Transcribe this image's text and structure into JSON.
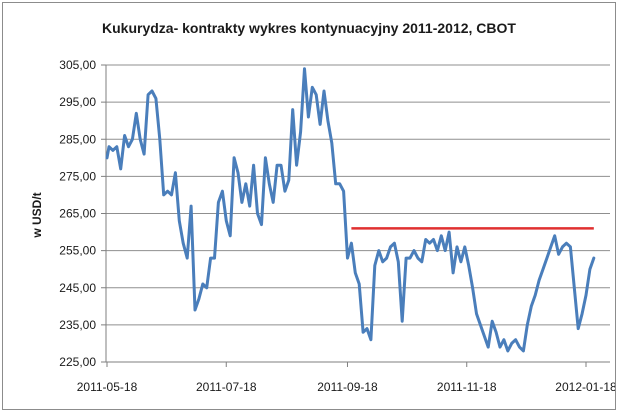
{
  "chart_data": {
    "type": "line",
    "title": "Kukurydza- kontrakty wykres kontynuacyjny 2011-2012,  CBOT",
    "xlabel": "",
    "ylabel": "w USD/t",
    "ylim": [
      225,
      305
    ],
    "y_ticks": [
      "305,00",
      "295,00",
      "285,00",
      "275,00",
      "265,00",
      "255,00",
      "245,00",
      "235,00",
      "225,00"
    ],
    "x_ticks": [
      {
        "date": "2011-05-18",
        "label": "2011-05-18"
      },
      {
        "date": "2011-07-18",
        "label": "2011-07-18"
      },
      {
        "date": "2011-09-18",
        "label": "2011-09-18"
      },
      {
        "date": "2011-11-18",
        "label": "2011-11-18"
      },
      {
        "date": "2012-01-18",
        "label": "2012-01-18"
      }
    ],
    "xlim": [
      "2011-05-18",
      "2012-01-18"
    ],
    "grid": true,
    "legend": "none",
    "series": [
      {
        "color": "#4a7ebb",
        "x": [
          "2011-05-18",
          "2011-05-19",
          "2011-05-21",
          "2011-05-23",
          "2011-05-25",
          "2011-05-27",
          "2011-05-29",
          "2011-05-31",
          "2011-06-02",
          "2011-06-04",
          "2011-06-06",
          "2011-06-08",
          "2011-06-10",
          "2011-06-12",
          "2011-06-14",
          "2011-06-16",
          "2011-06-18",
          "2011-06-20",
          "2011-06-22",
          "2011-06-24",
          "2011-06-26",
          "2011-06-28",
          "2011-06-30",
          "2011-07-02",
          "2011-07-04",
          "2011-07-06",
          "2011-07-08",
          "2011-07-10",
          "2011-07-12",
          "2011-07-14",
          "2011-07-16",
          "2011-07-18",
          "2011-07-20",
          "2011-07-22",
          "2011-07-24",
          "2011-07-26",
          "2011-07-28",
          "2011-07-30",
          "2011-08-01",
          "2011-08-03",
          "2011-08-05",
          "2011-08-07",
          "2011-08-09",
          "2011-08-11",
          "2011-08-13",
          "2011-08-15",
          "2011-08-17",
          "2011-08-19",
          "2011-08-21",
          "2011-08-23",
          "2011-08-25",
          "2011-08-27",
          "2011-08-29",
          "2011-08-31",
          "2011-09-02",
          "2011-09-04",
          "2011-09-06",
          "2011-09-08",
          "2011-09-10",
          "2011-09-12",
          "2011-09-14",
          "2011-09-16",
          "2011-09-18",
          "2011-09-20",
          "2011-09-22",
          "2011-09-24",
          "2011-09-26",
          "2011-09-28",
          "2011-09-30",
          "2011-10-02",
          "2011-10-04",
          "2011-10-06",
          "2011-10-08",
          "2011-10-10",
          "2011-10-12",
          "2011-10-14",
          "2011-10-16",
          "2011-10-18",
          "2011-10-20",
          "2011-10-22",
          "2011-10-24",
          "2011-10-26",
          "2011-10-28",
          "2011-10-30",
          "2011-11-01",
          "2011-11-03",
          "2011-11-05",
          "2011-11-07",
          "2011-11-09",
          "2011-11-11",
          "2011-11-13",
          "2011-11-15",
          "2011-11-17",
          "2011-11-19",
          "2011-11-21",
          "2011-11-23",
          "2011-11-25",
          "2011-11-27",
          "2011-11-29",
          "2011-12-01",
          "2011-12-03",
          "2011-12-05",
          "2011-12-07",
          "2011-12-09",
          "2011-12-11",
          "2011-12-13",
          "2011-12-15",
          "2011-12-17",
          "2011-12-19",
          "2011-12-21",
          "2011-12-23",
          "2011-12-25",
          "2011-12-27",
          "2011-12-29",
          "2011-12-31",
          "2012-01-02",
          "2012-01-04",
          "2012-01-06",
          "2012-01-08",
          "2012-01-10",
          "2012-01-12",
          "2012-01-14",
          "2012-01-16",
          "2012-01-18",
          "2012-01-20",
          "2012-01-22"
        ],
        "y": [
          280,
          283,
          282,
          283,
          277,
          286,
          283,
          285,
          292,
          285,
          281,
          297,
          298,
          296,
          285,
          270,
          271,
          270,
          276,
          263,
          257,
          253,
          267,
          239,
          242,
          246,
          245,
          253,
          253,
          268,
          271,
          263,
          259,
          280,
          276,
          268,
          273,
          267,
          278,
          265,
          262,
          280,
          273,
          268,
          278,
          278,
          271,
          274,
          293,
          278,
          287,
          304,
          291,
          299,
          297,
          289,
          298,
          290,
          284,
          273,
          273,
          271,
          253,
          257,
          249,
          246,
          233,
          234,
          231,
          251,
          255,
          252,
          253,
          256,
          257,
          252,
          236,
          253,
          253,
          255,
          253,
          252,
          258,
          257,
          258,
          255,
          259,
          255,
          260,
          249,
          256,
          252,
          256,
          251,
          245,
          238,
          235,
          232,
          229,
          236,
          233,
          229,
          231,
          228,
          230,
          231,
          229,
          228,
          235,
          240,
          243,
          247,
          250,
          253,
          256,
          259,
          254,
          256,
          257,
          256,
          245,
          234,
          238,
          243,
          250,
          253
        ]
      }
    ],
    "reference_line": {
      "y": 261,
      "x_from": "2011-09-20",
      "x_to": "2012-01-22",
      "color": "#e03030"
    }
  }
}
